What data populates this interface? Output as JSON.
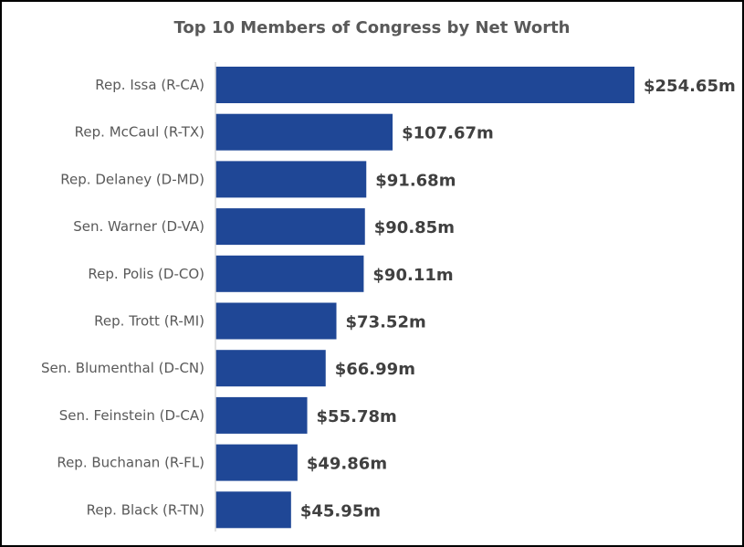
{
  "chart_data": {
    "type": "bar",
    "orientation": "horizontal",
    "title": "Top 10 Members of Congress by Net Worth",
    "categories": [
      "Rep. Issa (R-CA)",
      "Rep. McCaul  (R-TX)",
      "Rep. Delaney (D-MD)",
      "Sen. Warner (D-VA)",
      "Rep. Polis (D-CO)",
      "Rep. Trott (R-MI)",
      "Sen. Blumenthal (D-CN)",
      "Sen. Feinstein (D-CA)",
      "Rep. Buchanan (R-FL)",
      "Rep. Black (R-TN)"
    ],
    "values": [
      254.65,
      107.67,
      91.68,
      90.85,
      90.11,
      73.52,
      66.99,
      55.78,
      49.86,
      45.95
    ],
    "data_labels": [
      "$254.65m",
      "$107.67m",
      "$91.68m",
      "$90.85m",
      "$90.11m",
      "$73.52m",
      "$66.99m",
      "$55.78m",
      "$49.86m",
      "$45.95m"
    ],
    "xlim": [
      0,
      254.65
    ],
    "grid": false,
    "legend": "none",
    "bar_color": "#1f4796"
  }
}
